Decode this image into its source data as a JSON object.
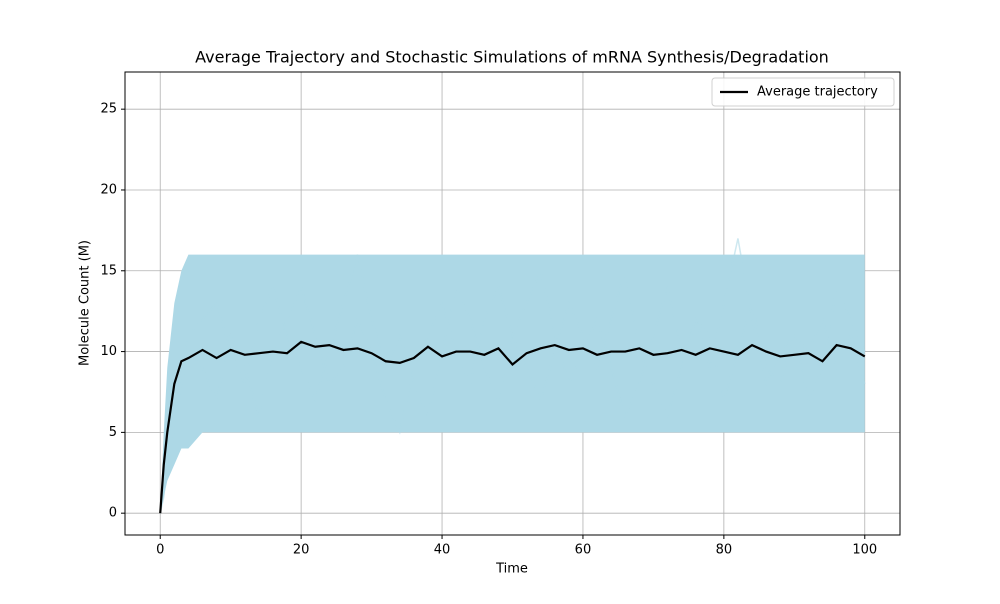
{
  "chart_data": {
    "type": "line",
    "title": "Average Trajectory and Stochastic Simulations of mRNA Synthesis/Degradation",
    "xlabel": "Time",
    "ylabel": "Molecule Count (M)",
    "x": [
      0,
      0.5,
      1,
      2,
      3,
      4,
      6,
      8,
      10,
      12,
      14,
      16,
      18,
      20,
      22,
      24,
      26,
      28,
      30,
      32,
      34,
      36,
      38,
      40,
      42,
      44,
      46,
      48,
      50,
      52,
      54,
      56,
      58,
      60,
      62,
      64,
      66,
      68,
      70,
      72,
      74,
      76,
      78,
      80,
      82,
      84,
      86,
      88,
      90,
      92,
      94,
      96,
      98,
      100
    ],
    "band": {
      "color": "#add8e6",
      "lower": [
        0,
        1,
        2,
        3,
        4,
        4,
        5,
        5,
        5,
        5,
        5,
        5,
        5,
        5,
        5,
        5,
        5,
        5,
        5,
        5,
        5,
        5,
        5,
        5,
        5,
        5,
        5,
        5,
        5,
        5,
        5,
        5,
        5,
        5,
        5,
        5,
        5,
        5,
        5,
        5,
        5,
        5,
        5,
        5,
        5,
        5,
        5,
        5,
        5,
        5,
        5,
        5,
        5,
        5
      ],
      "upper": [
        0,
        5,
        9,
        13,
        15,
        16,
        16,
        16,
        16,
        16,
        16,
        16,
        16,
        16,
        16,
        16,
        16,
        16,
        16,
        16,
        16,
        16,
        16,
        16,
        16,
        16,
        16,
        16,
        16,
        16,
        16,
        16,
        16,
        16,
        16,
        16,
        16,
        16,
        16,
        16,
        16,
        16,
        16,
        16,
        16,
        16,
        16,
        16,
        16,
        16,
        16,
        16,
        16,
        16
      ]
    },
    "simulations": [
      {
        "color": "#add8e6",
        "values": [
          0,
          2,
          4,
          7,
          9,
          11,
          12,
          13,
          10,
          8,
          12,
          14,
          11,
          9,
          7,
          10,
          13,
          16,
          12,
          9,
          11,
          8,
          6,
          10,
          14,
          12,
          9,
          7,
          11,
          13,
          15,
          11,
          8,
          10,
          12,
          9,
          6,
          8,
          11,
          14,
          10,
          12,
          9,
          13,
          17,
          12,
          8,
          10,
          11,
          7,
          9,
          14,
          12,
          10
        ]
      },
      {
        "color": "#add8e6",
        "values": [
          0,
          1,
          3,
          5,
          8,
          10,
          9,
          7,
          11,
          9,
          6,
          10,
          12,
          14,
          11,
          8,
          9,
          12,
          10,
          7,
          5,
          9,
          11,
          13,
          10,
          8,
          12,
          14,
          11,
          9,
          7,
          10,
          13,
          11,
          9,
          12,
          15,
          10,
          8,
          6,
          9,
          12,
          11,
          7,
          10,
          13,
          9,
          8,
          11,
          10,
          12,
          9,
          11,
          8
        ]
      }
    ],
    "series": [
      {
        "name": "Average trajectory",
        "color": "#000000",
        "values": [
          0,
          3,
          5,
          8,
          9.4,
          9.6,
          10.1,
          9.6,
          10.1,
          9.8,
          9.9,
          10.0,
          9.9,
          10.6,
          10.3,
          10.4,
          10.1,
          10.2,
          9.9,
          9.4,
          9.3,
          9.6,
          10.3,
          9.7,
          10.0,
          10.0,
          9.8,
          10.2,
          9.2,
          9.9,
          10.2,
          10.4,
          10.1,
          10.2,
          9.8,
          10.0,
          10.0,
          10.2,
          9.8,
          9.9,
          10.1,
          9.8,
          10.2,
          10.0,
          9.8,
          10.4,
          10.0,
          9.7,
          9.8,
          9.9,
          9.4,
          10.4,
          10.2,
          9.7
        ]
      }
    ],
    "xlim": [
      -5,
      105
    ],
    "ylim": [
      -1.35,
      27.3
    ],
    "xticks": [
      0,
      20,
      40,
      60,
      80,
      100
    ],
    "yticks": [
      0,
      5,
      10,
      15,
      20,
      25
    ],
    "grid": true,
    "legend": "upper right"
  }
}
